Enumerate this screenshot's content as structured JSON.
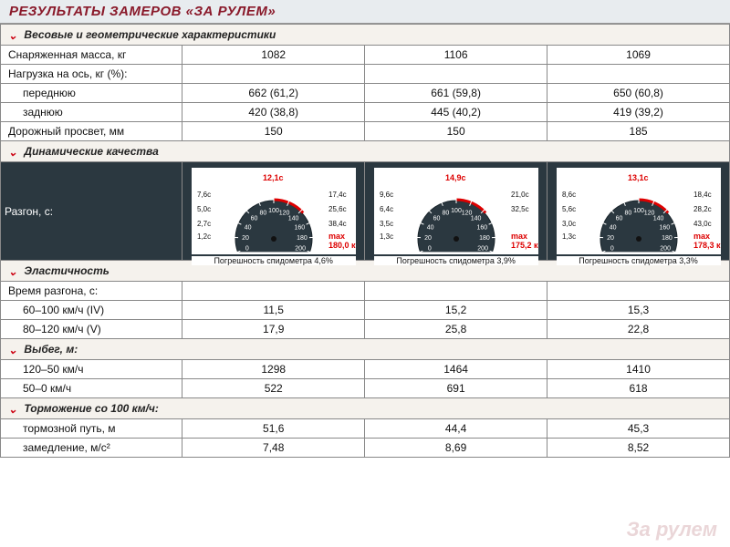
{
  "title": "РЕЗУЛЬТАТЫ ЗАМЕРОВ «ЗА РУЛЕМ»",
  "watermark": "За рулем",
  "sections": {
    "weight": {
      "header": "Весовые и геометрические характеристики",
      "rows": {
        "curb_mass": {
          "label": "Снаряженная масса, кг",
          "v": [
            "1082",
            "1106",
            "1069"
          ]
        },
        "axle_load_hdr": {
          "label": "Нагрузка на ось, кг (%):"
        },
        "front": {
          "label": "переднюю",
          "v": [
            "662 (61,2)",
            "661 (59,8)",
            "650 (60,8)"
          ]
        },
        "rear": {
          "label": "заднюю",
          "v": [
            "420 (38,8)",
            "445 (40,2)",
            "419 (39,2)"
          ]
        },
        "clearance": {
          "label": "Дорожный просвет, мм",
          "v": [
            "150",
            "150",
            "185"
          ]
        }
      }
    },
    "dynamic": {
      "header": "Динамические качества",
      "accel_label": "Разгон, с:",
      "gauges": [
        {
          "caption": "Погрешность спидометра 4,6%",
          "max_label": "max 180,0 км/ч",
          "top_red": "12,1с",
          "labels_left": [
            "1,2с",
            "2,7с",
            "5,0с",
            "7,6с"
          ],
          "labels_right": [
            "17,4с",
            "25,6с",
            "38,4с"
          ],
          "gauge_bg": "#2b3840",
          "needle_color": "#d00",
          "dial_numbers": [
            "0",
            "20",
            "40",
            "60",
            "80",
            "100",
            "120",
            "140",
            "160",
            "180",
            "200"
          ]
        },
        {
          "caption": "Погрешность спидометра 3,9%",
          "max_label": "max 175,2 км/ч",
          "top_red": "14,9с",
          "labels_left": [
            "1,3с",
            "3,5с",
            "6,4с",
            "9,6с"
          ],
          "labels_right": [
            "21,0с",
            "32,5с",
            ""
          ],
          "gauge_bg": "#2b3840",
          "needle_color": "#d00",
          "dial_numbers": [
            "0",
            "20",
            "40",
            "60",
            "80",
            "100",
            "120",
            "140",
            "160",
            "180",
            "200"
          ]
        },
        {
          "caption": "Погрешность спидометра 3,3%",
          "max_label": "max 178,3 км/ч",
          "top_red": "13,1с",
          "labels_left": [
            "1,3с",
            "3,0с",
            "5,6с",
            "8,6с"
          ],
          "labels_right": [
            "18,4с",
            "28,2с",
            "43,0с"
          ],
          "gauge_bg": "#2b3840",
          "needle_color": "#d00",
          "dial_numbers": [
            "0",
            "20",
            "40",
            "60",
            "80",
            "100",
            "120",
            "140",
            "160",
            "180",
            "200"
          ]
        }
      ]
    },
    "elasticity": {
      "header": "Эластичность",
      "rows": {
        "hdr": {
          "label": "Время разгона, с:"
        },
        "r60_100": {
          "label": "60–100 км/ч (IV)",
          "v": [
            "11,5",
            "15,2",
            "15,3"
          ]
        },
        "r80_120": {
          "label": "80–120 км/ч (V)",
          "v": [
            "17,9",
            "25,8",
            "22,8"
          ]
        }
      }
    },
    "coast": {
      "header": "Выбег, м:",
      "rows": {
        "r120_50": {
          "label": "120–50 км/ч",
          "v": [
            "1298",
            "1464",
            "1410"
          ]
        },
        "r50_0": {
          "label": "50–0 км/ч",
          "v": [
            "522",
            "691",
            "618"
          ]
        }
      }
    },
    "braking": {
      "header": "Торможение со 100 км/ч:",
      "rows": {
        "dist": {
          "label": "тормозной путь, м",
          "v": [
            "51,6",
            "44,4",
            "45,3"
          ]
        },
        "decel": {
          "label": "замедление, м/с²",
          "v": [
            "7,48",
            "8,69",
            "8,52"
          ]
        }
      }
    }
  },
  "style": {
    "title_bg": "#e8ecef",
    "title_color": "#8a1a2b",
    "section_bg": "#f5f2ed",
    "chevron_color": "#c01",
    "border_color": "#888",
    "gauge_row_bg": "#2b3840",
    "font_size_body": 12,
    "font_size_title": 15
  }
}
